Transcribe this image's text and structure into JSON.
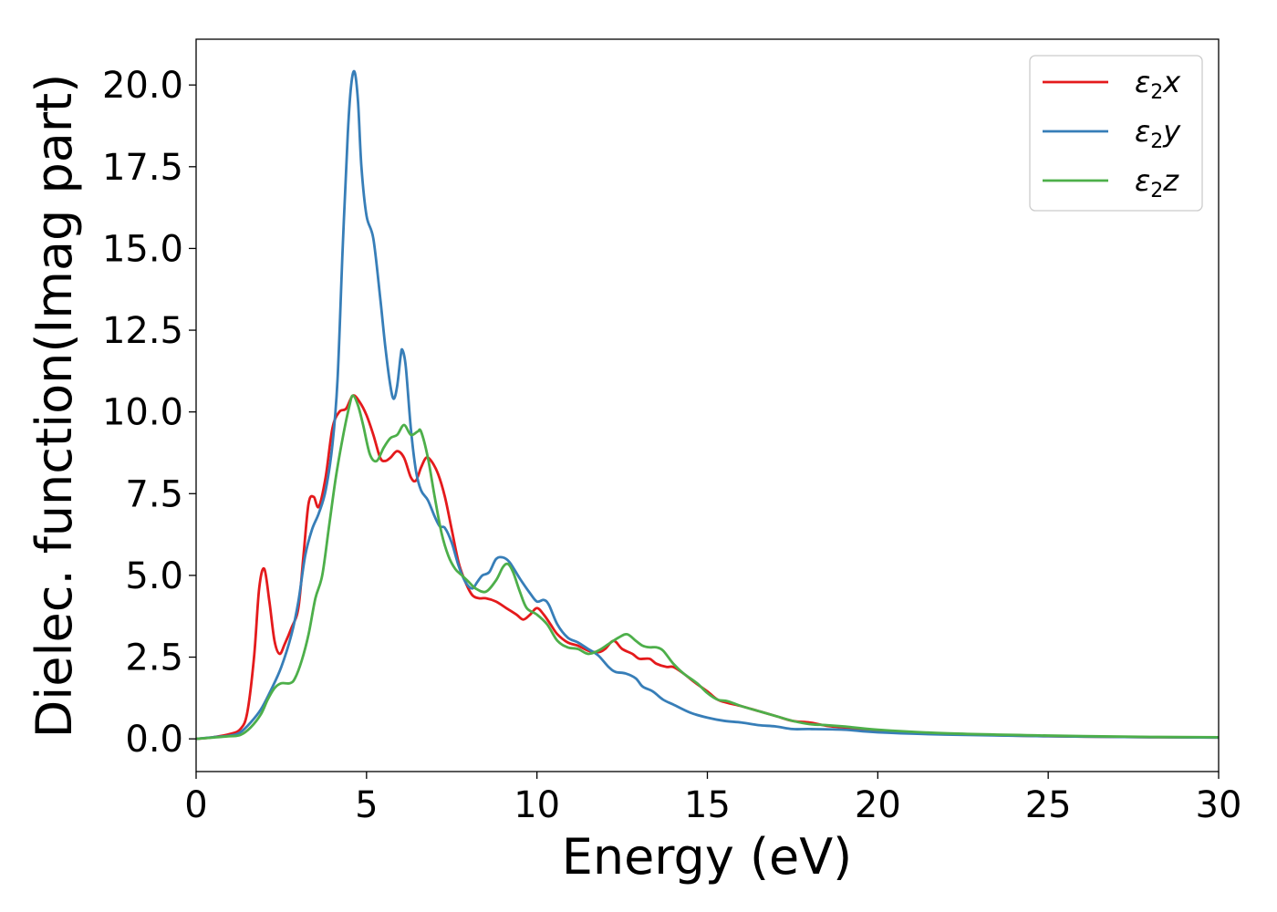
{
  "chart_data": {
    "type": "line",
    "title": "",
    "xlabel": "Energy (eV)",
    "ylabel": "Dielec. function(Imag part)",
    "xlim": [
      0,
      30
    ],
    "ylim": [
      -1.0,
      21.4
    ],
    "xticks": [
      0,
      5,
      10,
      15,
      20,
      25,
      30
    ],
    "xtick_labels": [
      "0",
      "5",
      "10",
      "15",
      "20",
      "25",
      "30"
    ],
    "yticks": [
      0,
      2.5,
      5,
      7.5,
      10,
      12.5,
      15,
      17.5,
      20
    ],
    "ytick_labels": [
      "0.0",
      "2.5",
      "5.0",
      "7.5",
      "10.0",
      "12.5",
      "15.0",
      "17.5",
      "20.0"
    ],
    "grid": false,
    "legend_position": "top-right",
    "series": [
      {
        "name": "ε₂x",
        "legend_main": "ε",
        "legend_sub": "2",
        "legend_suffix": "x",
        "color": "#e41a1c",
        "points": [
          [
            0,
            0
          ],
          [
            0.5,
            0.05
          ],
          [
            1,
            0.15
          ],
          [
            1.3,
            0.3
          ],
          [
            1.5,
            0.8
          ],
          [
            1.7,
            2.5
          ],
          [
            1.85,
            4.6
          ],
          [
            2.0,
            5.2
          ],
          [
            2.15,
            4.2
          ],
          [
            2.3,
            3.0
          ],
          [
            2.45,
            2.6
          ],
          [
            2.6,
            2.9
          ],
          [
            2.8,
            3.4
          ],
          [
            3.0,
            4.0
          ],
          [
            3.15,
            5.6
          ],
          [
            3.3,
            7.2
          ],
          [
            3.45,
            7.4
          ],
          [
            3.6,
            7.1
          ],
          [
            3.8,
            8.0
          ],
          [
            4.0,
            9.5
          ],
          [
            4.2,
            10.0
          ],
          [
            4.4,
            10.1
          ],
          [
            4.6,
            10.5
          ],
          [
            4.8,
            10.3
          ],
          [
            5.0,
            9.9
          ],
          [
            5.2,
            9.3
          ],
          [
            5.4,
            8.6
          ],
          [
            5.55,
            8.5
          ],
          [
            5.7,
            8.6
          ],
          [
            5.9,
            8.8
          ],
          [
            6.1,
            8.6
          ],
          [
            6.3,
            8.0
          ],
          [
            6.45,
            7.9
          ],
          [
            6.6,
            8.3
          ],
          [
            6.75,
            8.6
          ],
          [
            6.9,
            8.5
          ],
          [
            7.1,
            8.1
          ],
          [
            7.3,
            7.4
          ],
          [
            7.5,
            6.4
          ],
          [
            7.7,
            5.4
          ],
          [
            7.9,
            4.8
          ],
          [
            8.1,
            4.4
          ],
          [
            8.3,
            4.3
          ],
          [
            8.5,
            4.3
          ],
          [
            8.8,
            4.2
          ],
          [
            9.1,
            4.0
          ],
          [
            9.4,
            3.8
          ],
          [
            9.6,
            3.65
          ],
          [
            9.8,
            3.8
          ],
          [
            10.0,
            4.0
          ],
          [
            10.2,
            3.8
          ],
          [
            10.4,
            3.5
          ],
          [
            10.6,
            3.2
          ],
          [
            10.9,
            2.95
          ],
          [
            11.2,
            2.85
          ],
          [
            11.5,
            2.7
          ],
          [
            11.8,
            2.65
          ],
          [
            12.0,
            2.75
          ],
          [
            12.25,
            3.0
          ],
          [
            12.5,
            2.75
          ],
          [
            12.8,
            2.6
          ],
          [
            13.0,
            2.45
          ],
          [
            13.3,
            2.45
          ],
          [
            13.5,
            2.3
          ],
          [
            13.8,
            2.2
          ],
          [
            14.0,
            2.2
          ],
          [
            14.3,
            2.0
          ],
          [
            14.6,
            1.75
          ],
          [
            15.0,
            1.45
          ],
          [
            15.3,
            1.2
          ],
          [
            15.6,
            1.1
          ],
          [
            16.0,
            1.0
          ],
          [
            16.5,
            0.85
          ],
          [
            17.0,
            0.7
          ],
          [
            17.5,
            0.55
          ],
          [
            18.0,
            0.5
          ],
          [
            18.5,
            0.4
          ],
          [
            19.0,
            0.35
          ],
          [
            20,
            0.25
          ],
          [
            22,
            0.15
          ],
          [
            25,
            0.08
          ],
          [
            28,
            0.05
          ],
          [
            30,
            0.04
          ]
        ]
      },
      {
        "name": "ε₂y",
        "legend_main": "ε",
        "legend_sub": "2",
        "legend_suffix": "y",
        "color": "#377eb8",
        "points": [
          [
            0,
            0
          ],
          [
            0.5,
            0.05
          ],
          [
            1,
            0.1
          ],
          [
            1.3,
            0.2
          ],
          [
            1.6,
            0.5
          ],
          [
            1.9,
            0.9
          ],
          [
            2.2,
            1.5
          ],
          [
            2.5,
            2.2
          ],
          [
            2.8,
            3.2
          ],
          [
            3.0,
            4.2
          ],
          [
            3.2,
            5.6
          ],
          [
            3.4,
            6.4
          ],
          [
            3.6,
            6.9
          ],
          [
            3.8,
            7.6
          ],
          [
            4.0,
            9.0
          ],
          [
            4.15,
            11.0
          ],
          [
            4.3,
            15.0
          ],
          [
            4.45,
            18.5
          ],
          [
            4.55,
            20.0
          ],
          [
            4.65,
            20.4
          ],
          [
            4.75,
            19.5
          ],
          [
            4.85,
            17.5
          ],
          [
            5.0,
            16.0
          ],
          [
            5.2,
            15.3
          ],
          [
            5.4,
            13.5
          ],
          [
            5.55,
            12.0
          ],
          [
            5.7,
            10.8
          ],
          [
            5.8,
            10.4
          ],
          [
            5.9,
            10.8
          ],
          [
            6.0,
            11.7
          ],
          [
            6.05,
            11.9
          ],
          [
            6.15,
            11.4
          ],
          [
            6.3,
            9.5
          ],
          [
            6.45,
            8.2
          ],
          [
            6.6,
            7.6
          ],
          [
            6.8,
            7.3
          ],
          [
            7.0,
            6.8
          ],
          [
            7.15,
            6.5
          ],
          [
            7.3,
            6.45
          ],
          [
            7.5,
            6.0
          ],
          [
            7.7,
            5.3
          ],
          [
            7.9,
            4.8
          ],
          [
            8.1,
            4.6
          ],
          [
            8.25,
            4.8
          ],
          [
            8.4,
            5.0
          ],
          [
            8.6,
            5.1
          ],
          [
            8.8,
            5.5
          ],
          [
            9.0,
            5.55
          ],
          [
            9.2,
            5.4
          ],
          [
            9.5,
            4.9
          ],
          [
            9.8,
            4.45
          ],
          [
            10.0,
            4.2
          ],
          [
            10.2,
            4.25
          ],
          [
            10.35,
            4.1
          ],
          [
            10.6,
            3.5
          ],
          [
            10.9,
            3.1
          ],
          [
            11.2,
            2.95
          ],
          [
            11.5,
            2.75
          ],
          [
            11.8,
            2.55
          ],
          [
            12.1,
            2.2
          ],
          [
            12.3,
            2.05
          ],
          [
            12.6,
            2.0
          ],
          [
            12.9,
            1.85
          ],
          [
            13.1,
            1.6
          ],
          [
            13.4,
            1.45
          ],
          [
            13.7,
            1.2
          ],
          [
            14.0,
            1.05
          ],
          [
            14.5,
            0.8
          ],
          [
            15.0,
            0.65
          ],
          [
            15.5,
            0.55
          ],
          [
            16.0,
            0.5
          ],
          [
            16.5,
            0.42
          ],
          [
            17.0,
            0.38
          ],
          [
            17.5,
            0.3
          ],
          [
            18.0,
            0.3
          ],
          [
            19.0,
            0.28
          ],
          [
            20,
            0.2
          ],
          [
            22,
            0.13
          ],
          [
            25,
            0.08
          ],
          [
            28,
            0.05
          ],
          [
            30,
            0.04
          ]
        ]
      },
      {
        "name": "ε₂z",
        "legend_main": "ε",
        "legend_sub": "2",
        "legend_suffix": "z",
        "color": "#4daf4a",
        "points": [
          [
            0,
            0
          ],
          [
            0.5,
            0.04
          ],
          [
            1,
            0.08
          ],
          [
            1.3,
            0.12
          ],
          [
            1.6,
            0.35
          ],
          [
            1.9,
            0.75
          ],
          [
            2.1,
            1.2
          ],
          [
            2.3,
            1.55
          ],
          [
            2.5,
            1.7
          ],
          [
            2.75,
            1.7
          ],
          [
            2.9,
            1.85
          ],
          [
            3.1,
            2.4
          ],
          [
            3.3,
            3.2
          ],
          [
            3.5,
            4.3
          ],
          [
            3.7,
            5.0
          ],
          [
            3.9,
            6.5
          ],
          [
            4.1,
            8.0
          ],
          [
            4.3,
            9.2
          ],
          [
            4.5,
            10.2
          ],
          [
            4.6,
            10.5
          ],
          [
            4.75,
            10.2
          ],
          [
            4.9,
            9.6
          ],
          [
            5.1,
            8.7
          ],
          [
            5.3,
            8.5
          ],
          [
            5.5,
            8.9
          ],
          [
            5.7,
            9.2
          ],
          [
            5.9,
            9.3
          ],
          [
            6.1,
            9.6
          ],
          [
            6.3,
            9.3
          ],
          [
            6.5,
            9.4
          ],
          [
            6.6,
            9.4
          ],
          [
            6.8,
            8.6
          ],
          [
            7.0,
            7.4
          ],
          [
            7.2,
            6.3
          ],
          [
            7.4,
            5.6
          ],
          [
            7.6,
            5.2
          ],
          [
            7.8,
            5.0
          ],
          [
            8.0,
            4.8
          ],
          [
            8.2,
            4.6
          ],
          [
            8.5,
            4.5
          ],
          [
            8.8,
            4.85
          ],
          [
            9.0,
            5.25
          ],
          [
            9.15,
            5.35
          ],
          [
            9.3,
            5.1
          ],
          [
            9.5,
            4.5
          ],
          [
            9.7,
            4.0
          ],
          [
            10.0,
            3.8
          ],
          [
            10.3,
            3.5
          ],
          [
            10.6,
            3.0
          ],
          [
            10.9,
            2.8
          ],
          [
            11.2,
            2.75
          ],
          [
            11.5,
            2.6
          ],
          [
            11.8,
            2.7
          ],
          [
            12.1,
            2.9
          ],
          [
            12.4,
            3.1
          ],
          [
            12.65,
            3.2
          ],
          [
            12.9,
            3.0
          ],
          [
            13.1,
            2.85
          ],
          [
            13.3,
            2.8
          ],
          [
            13.5,
            2.8
          ],
          [
            13.7,
            2.7
          ],
          [
            14.0,
            2.3
          ],
          [
            14.3,
            2.0
          ],
          [
            14.7,
            1.7
          ],
          [
            15.0,
            1.4
          ],
          [
            15.3,
            1.2
          ],
          [
            15.6,
            1.15
          ],
          [
            16.0,
            1.0
          ],
          [
            16.5,
            0.85
          ],
          [
            17.0,
            0.7
          ],
          [
            17.5,
            0.55
          ],
          [
            18.0,
            0.45
          ],
          [
            18.5,
            0.42
          ],
          [
            19.0,
            0.38
          ],
          [
            20,
            0.28
          ],
          [
            22,
            0.17
          ],
          [
            25,
            0.1
          ],
          [
            28,
            0.06
          ],
          [
            30,
            0.05
          ]
        ]
      }
    ]
  }
}
